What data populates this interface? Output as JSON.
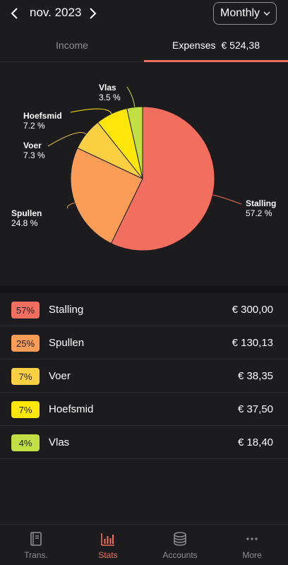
{
  "header": {
    "month": "nov. 2023",
    "period": "Monthly"
  },
  "tabs": {
    "income": "Income",
    "expenses": "Expenses",
    "expenses_total": "€ 524,38"
  },
  "colors": {
    "accent": "#f26e5e",
    "stalling": "#f26e5e",
    "spullen": "#fb9c57",
    "voer": "#fdd043",
    "hoefsmid": "#ffe60a",
    "vlas": "#c2e044"
  },
  "chart_data": {
    "type": "pie",
    "slices": [
      {
        "name": "Stalling",
        "value": 57.2,
        "pct_label": "57.2 %"
      },
      {
        "name": "Spullen",
        "value": 24.8,
        "pct_label": "24.8 %"
      },
      {
        "name": "Voer",
        "value": 7.3,
        "pct_label": "7.3 %"
      },
      {
        "name": "Hoefsmid",
        "value": 7.2,
        "pct_label": "7.2 %"
      },
      {
        "name": "Vlas",
        "value": 3.5,
        "pct_label": "3.5 %"
      }
    ]
  },
  "categories": [
    {
      "badge": "57%",
      "name": "Stalling",
      "amount": "€ 300,00"
    },
    {
      "badge": "25%",
      "name": "Spullen",
      "amount": "€ 130,13"
    },
    {
      "badge": "7%",
      "name": "Voer",
      "amount": "€ 38,35"
    },
    {
      "badge": "7%",
      "name": "Hoefsmid",
      "amount": "€ 37,50"
    },
    {
      "badge": "4%",
      "name": "Vlas",
      "amount": "€ 18,40"
    }
  ],
  "bottom_nav": [
    {
      "label": "Trans.",
      "icon": "book-icon"
    },
    {
      "label": "Stats",
      "icon": "bar-chart-icon"
    },
    {
      "label": "Accounts",
      "icon": "coins-icon"
    },
    {
      "label": "More",
      "icon": "more-dots-icon"
    }
  ]
}
